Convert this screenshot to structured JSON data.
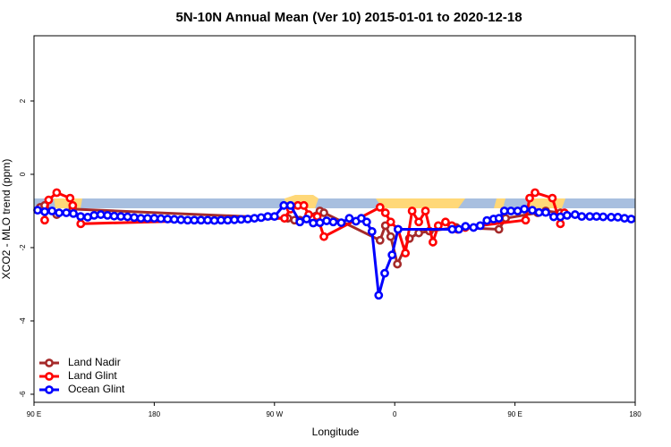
{
  "chart_data": {
    "type": "line",
    "title": "5N-10N Annual Mean (Ver 10)   2015-01-01 to 2020-12-18",
    "x_label": "Longitude",
    "y_label": "XCO2 - MLO trend (ppm)",
    "xlim": [
      90,
      540
    ],
    "xticks": [
      {
        "value": 90,
        "label": "90 E"
      },
      {
        "value": 180,
        "label": "180"
      },
      {
        "value": 270,
        "label": "90 W"
      },
      {
        "value": 360,
        "label": "0"
      },
      {
        "value": 450,
        "label": "90 E"
      },
      {
        "value": 540,
        "label": "180"
      }
    ],
    "ylim": [
      -6.22,
      3.78
    ],
    "yticks": [
      2,
      0,
      -2,
      -4,
      -6
    ],
    "legend": "bottom-left",
    "series": [
      {
        "name": "Land Nadir",
        "color": "#a52a2a",
        "x": [
          94.7,
          98,
          107,
          119,
          280,
          285,
          289,
          304,
          307,
          349,
          353,
          357,
          362,
          371,
          378,
          386,
          406,
          438,
          443,
          467,
          473,
          484
        ],
        "values": [
          -0.9,
          -0.85,
          -1.1,
          -0.95,
          -1.2,
          -1.25,
          -1.25,
          -1.0,
          -1.05,
          -1.8,
          -1.4,
          -1.7,
          -2.45,
          -1.75,
          -1.6,
          -1.55,
          -1.45,
          -1.5,
          -1.2,
          -1.05,
          -1.0,
          -1.05
        ]
      },
      {
        "name": "Land Glint",
        "color": "#ff0000",
        "x": [
          98,
          101,
          107,
          117,
          119,
          125,
          277.5,
          282,
          287.5,
          292,
          295.6,
          302,
          307,
          349,
          353,
          357,
          362.5,
          368,
          373,
          378,
          383,
          388.6,
          392.6,
          398,
          402.7,
          407,
          412.8,
          458,
          461,
          465,
          478,
          484,
          487
        ],
        "values": [
          -1.25,
          -0.7,
          -0.5,
          -0.65,
          -0.85,
          -1.35,
          -1.2,
          -0.95,
          -0.85,
          -0.85,
          -1.1,
          -1.15,
          -1.7,
          -0.9,
          -1.05,
          -1.3,
          -1.5,
          -2.15,
          -1.0,
          -1.3,
          -1.0,
          -1.85,
          -1.4,
          -1.3,
          -1.4,
          -1.5,
          -1.45,
          -1.25,
          -0.65,
          -0.5,
          -0.65,
          -1.35,
          -1.05
        ]
      },
      {
        "name": "Ocean Glint",
        "color": "#0000ff",
        "x": [
          92.7,
          98,
          103.5,
          108.8,
          114.2,
          119.5,
          124.9,
          130.2,
          135,
          140,
          145,
          150,
          155,
          160,
          165,
          170,
          175,
          180,
          185,
          190,
          195,
          200,
          205,
          210,
          215,
          220,
          225,
          230,
          235,
          240,
          245,
          250,
          255,
          260,
          265,
          270,
          277,
          282,
          289,
          294,
          299,
          304,
          309,
          314,
          320,
          326,
          331,
          335,
          339,
          343,
          348,
          352.5,
          358,
          362.5,
          403,
          408,
          413,
          419,
          424,
          429,
          434,
          438,
          442,
          447,
          452,
          457,
          463,
          468,
          473,
          479,
          484,
          489,
          495,
          500,
          506,
          511,
          516,
          522,
          527,
          532,
          537
        ],
        "values": [
          -0.98,
          -1.02,
          -1.0,
          -1.05,
          -1.05,
          -1.07,
          -1.15,
          -1.17,
          -1.12,
          -1.1,
          -1.12,
          -1.14,
          -1.15,
          -1.16,
          -1.18,
          -1.2,
          -1.2,
          -1.2,
          -1.21,
          -1.22,
          -1.23,
          -1.24,
          -1.25,
          -1.25,
          -1.25,
          -1.25,
          -1.26,
          -1.25,
          -1.25,
          -1.24,
          -1.23,
          -1.22,
          -1.2,
          -1.18,
          -1.15,
          -1.15,
          -0.85,
          -0.85,
          -1.3,
          -1.22,
          -1.33,
          -1.32,
          -1.27,
          -1.3,
          -1.32,
          -1.2,
          -1.28,
          -1.2,
          -1.3,
          -1.56,
          -3.3,
          -2.7,
          -2.2,
          -1.5,
          -1.5,
          -1.5,
          -1.42,
          -1.45,
          -1.4,
          -1.26,
          -1.22,
          -1.2,
          -1.0,
          -1.0,
          -1.0,
          -0.95,
          -0.98,
          -1.04,
          -1.04,
          -1.16,
          -1.16,
          -1.12,
          -1.1,
          -1.15,
          -1.15,
          -1.15,
          -1.16,
          -1.17,
          -1.17,
          -1.2,
          -1.22
        ]
      }
    ]
  }
}
